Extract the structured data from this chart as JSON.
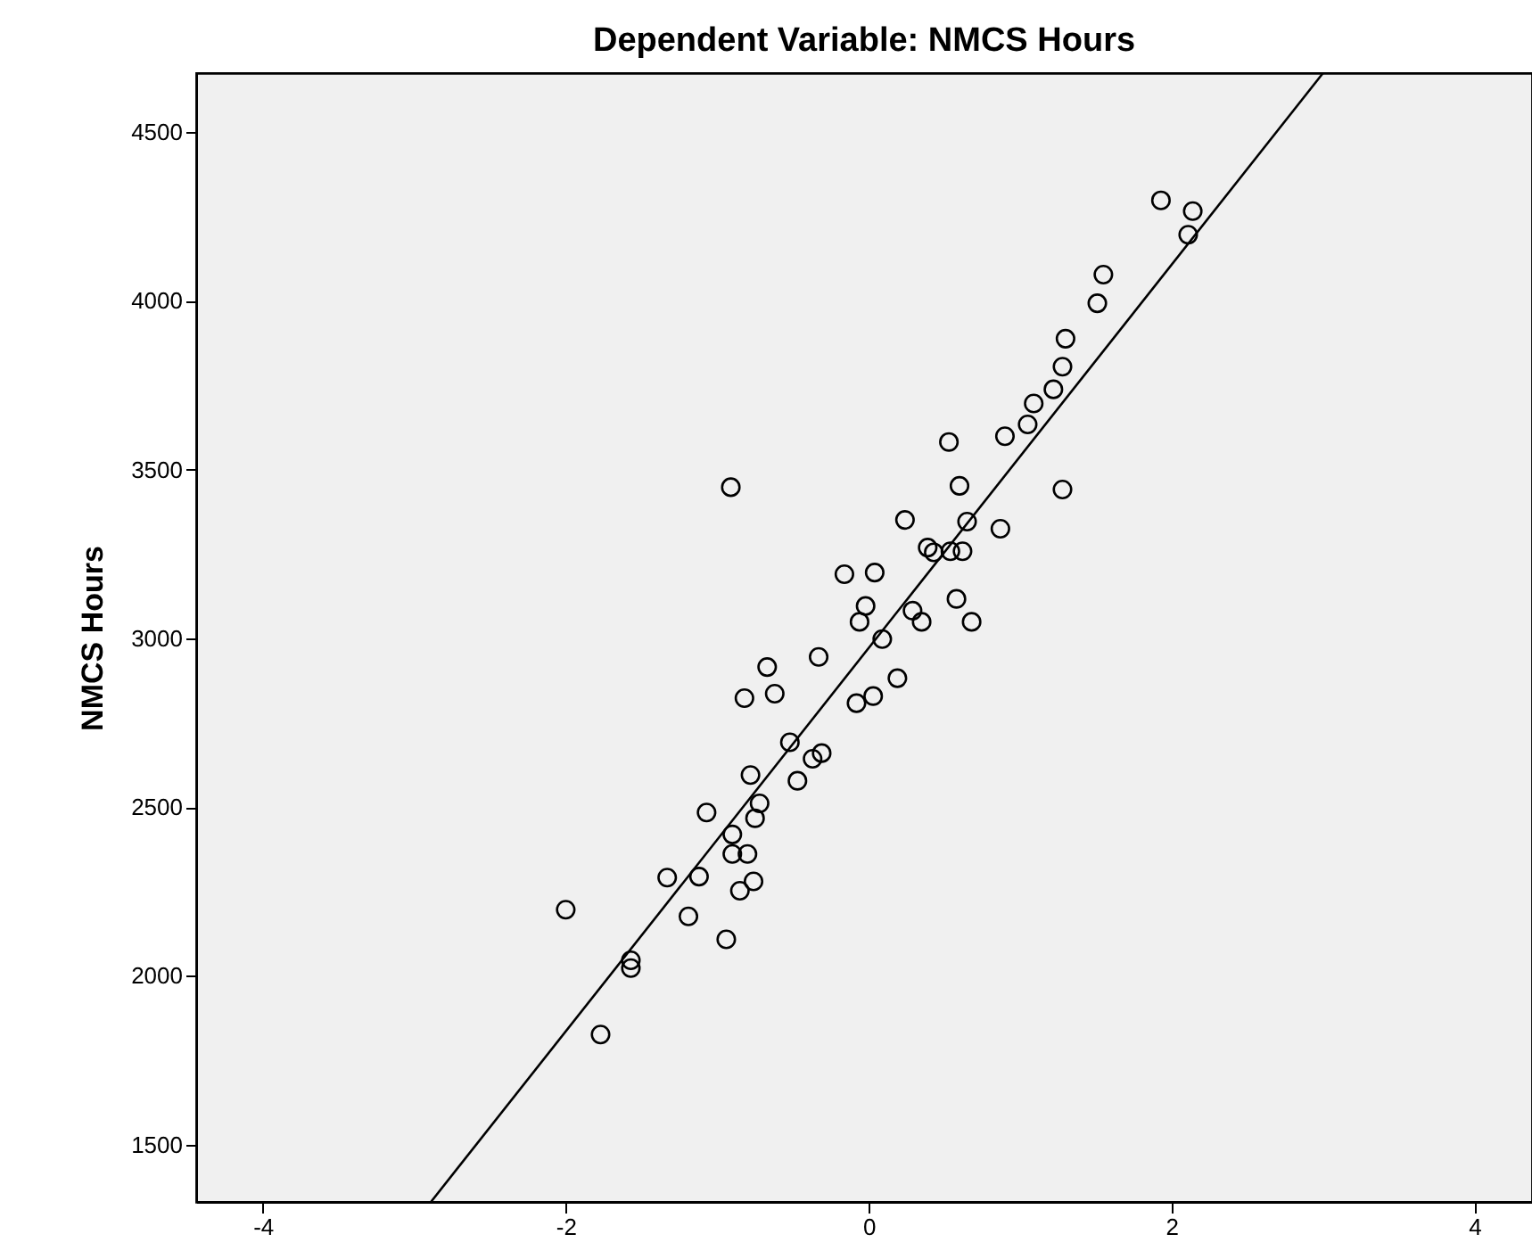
{
  "chart_data": {
    "type": "scatter",
    "title": "Dependent Variable: NMCS Hours",
    "ylabel": "NMCS Hours",
    "xlim": [
      -4.44,
      4.38
    ],
    "ylim": [
      1330,
      4675
    ],
    "xticks": [
      -4,
      -2,
      0,
      2,
      4
    ],
    "yticks": [
      1500,
      2000,
      2500,
      3000,
      3500,
      4000,
      4500
    ],
    "x": [
      -2.0,
      -1.77,
      -1.57,
      -1.57,
      -1.33,
      -1.12,
      -1.19,
      -1.07,
      -0.94,
      -0.9,
      -0.9,
      -0.8,
      -0.85,
      -0.76,
      -0.78,
      -0.72,
      -0.75,
      -0.47,
      -0.37,
      -0.31,
      -0.91,
      -0.52,
      -0.82,
      -0.62,
      -0.67,
      -0.33,
      -0.08,
      0.03,
      0.19,
      -0.16,
      0.04,
      -0.02,
      -0.06,
      0.09,
      0.29,
      0.35,
      0.24,
      0.39,
      0.43,
      0.54,
      0.62,
      0.58,
      0.68,
      0.6,
      0.65,
      0.87,
      0.53,
      0.9,
      1.05,
      1.09,
      1.22,
      1.28,
      1.3,
      1.28,
      1.93,
      2.14,
      2.11,
      1.55,
      1.51
    ],
    "series": [
      {
        "marker": "circle",
        "color": "#000000",
        "values": [
          2196,
          1826,
          2046,
          2023,
          2291,
          2294,
          2176,
          2484,
          2108,
          2419,
          2361,
          2361,
          2252,
          2280,
          2595,
          2511,
          2467,
          2578,
          2643,
          2660,
          3448,
          2692,
          2823,
          2836,
          2915,
          2945,
          2808,
          2829,
          2882,
          3190,
          3195,
          3096,
          3049,
          2998,
          3082,
          3049,
          3351,
          3269,
          3255,
          3258,
          3258,
          3117,
          3049,
          3452,
          3346,
          3325,
          3582,
          3599,
          3634,
          3696,
          3738,
          3805,
          3888,
          3441,
          4298,
          4266,
          4196,
          4078,
          3993
        ]
      },
      {
        "type": "line",
        "marker": "none",
        "color": "#000000",
        "x": [
          -2.89,
          3.0
        ],
        "values": [
          1330,
          4675
        ]
      }
    ]
  }
}
